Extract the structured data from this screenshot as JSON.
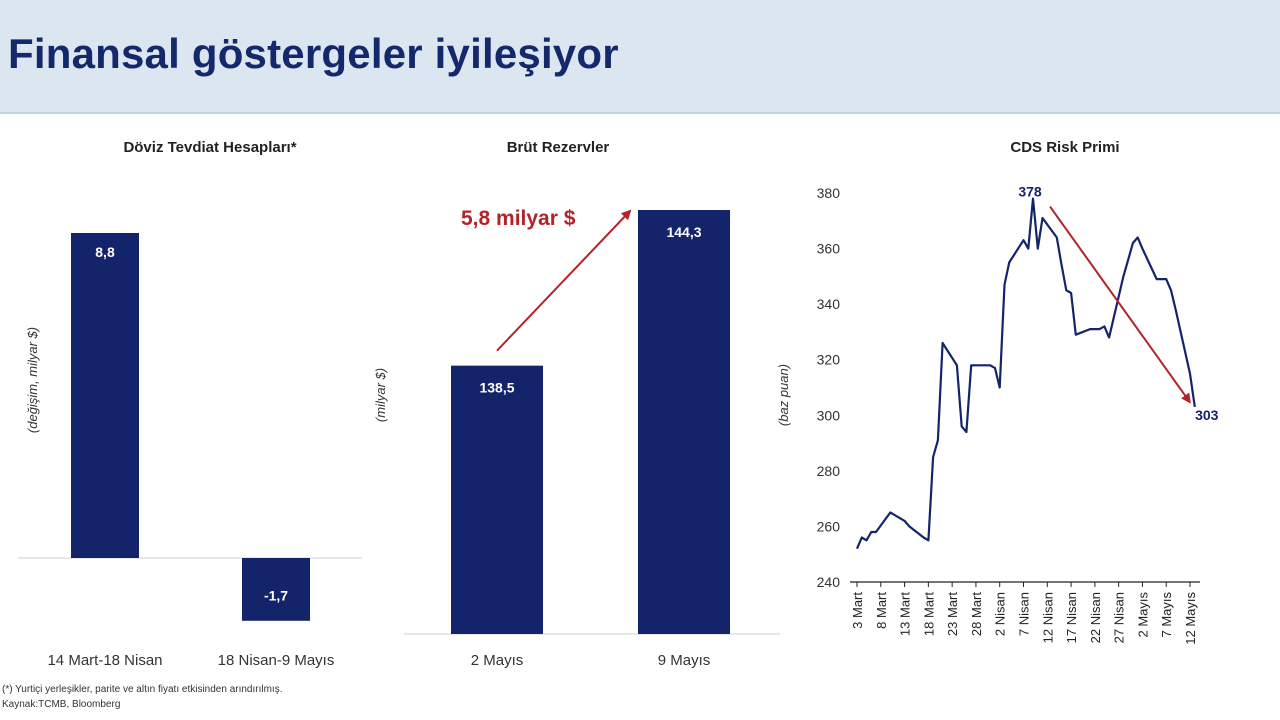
{
  "header": {
    "title": "Finansal göstergeler iyileşiyor"
  },
  "footnotes": {
    "note": "(*) Yurtiçi yerleşikler, parite ve altın fiyatı etkisinden arındırılmış.",
    "source": "Kaynak:TCMB,  Bloomberg"
  },
  "colors": {
    "bar": "#14246b",
    "accent": "#b4232a",
    "header_bg": "#dce6f1",
    "title": "#14296b"
  },
  "chart_data": [
    {
      "type": "bar",
      "title": "Döviz Tevdiat Hesapları*",
      "ylabel": "(değişim, milyar $)",
      "categories": [
        "14 Mart-18 Nisan",
        "18 Nisan-9 Mayıs"
      ],
      "values": [
        8.8,
        -1.7
      ],
      "data_labels": [
        "8,8",
        "-1,7"
      ],
      "ylim": [
        -1.7,
        8.8
      ]
    },
    {
      "type": "bar",
      "title": "Brüt Rezervler",
      "ylabel": "(milyar $)",
      "categories": [
        "2 Mayıs",
        "9 Mayıs"
      ],
      "values": [
        138.5,
        144.3
      ],
      "data_labels": [
        "138,5",
        "144,3"
      ],
      "annotation": "5,8 milyar $"
    },
    {
      "type": "line",
      "title": "CDS Risk Primi",
      "ylabel": "(baz puan)",
      "ylim": [
        240,
        380
      ],
      "yticks": [
        240,
        260,
        280,
        300,
        320,
        340,
        360,
        380
      ],
      "xtick_labels": [
        "3 Mart",
        "8 Mart",
        "13 Mart",
        "18 Mart",
        "23 Mart",
        "28 Mart",
        "2 Nisan",
        "7 Nisan",
        "12 Nisan",
        "17 Nisan",
        "22 Nisan",
        "27 Nisan",
        "2 Mayıs",
        "7 Mayıs",
        "12 Mayıs"
      ],
      "x_start": "2025-03-03",
      "x": [
        "2025-03-03",
        "2025-03-04",
        "2025-03-05",
        "2025-03-06",
        "2025-03-07",
        "2025-03-10",
        "2025-03-11",
        "2025-03-12",
        "2025-03-13",
        "2025-03-14",
        "2025-03-17",
        "2025-03-18",
        "2025-03-19",
        "2025-03-20",
        "2025-03-21",
        "2025-03-24",
        "2025-03-25",
        "2025-03-26",
        "2025-03-27",
        "2025-03-28",
        "2025-03-31",
        "2025-04-01",
        "2025-04-02",
        "2025-04-03",
        "2025-04-04",
        "2025-04-07",
        "2025-04-08",
        "2025-04-09",
        "2025-04-10",
        "2025-04-11",
        "2025-04-14",
        "2025-04-15",
        "2025-04-16",
        "2025-04-17",
        "2025-04-18",
        "2025-04-21",
        "2025-04-22",
        "2025-04-23",
        "2025-04-24",
        "2025-04-25",
        "2025-04-28",
        "2025-04-29",
        "2025-04-30",
        "2025-05-01",
        "2025-05-02",
        "2025-05-05",
        "2025-05-06",
        "2025-05-07",
        "2025-05-08",
        "2025-05-09",
        "2025-05-12",
        "2025-05-13"
      ],
      "values": [
        252,
        256,
        255,
        258,
        258,
        265,
        264,
        263,
        262,
        260,
        256,
        255,
        285,
        291,
        326,
        318,
        296,
        294,
        318,
        318,
        318,
        317,
        310,
        347,
        355,
        363,
        360,
        378,
        360,
        371,
        364,
        354,
        345,
        344,
        329,
        331,
        331,
        331,
        332,
        328,
        350,
        356,
        362,
        364,
        360,
        349,
        349,
        349,
        345,
        338,
        315,
        303
      ],
      "annotations": [
        {
          "text": "378"
        },
        {
          "text": "303"
        }
      ]
    }
  ]
}
